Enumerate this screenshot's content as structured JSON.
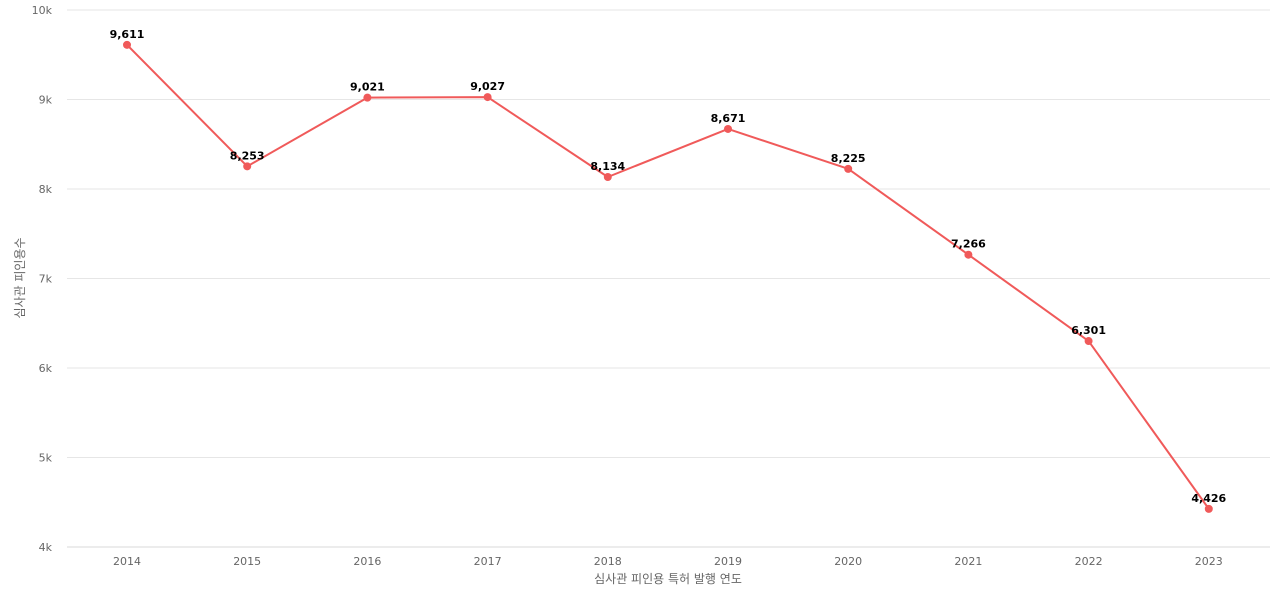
{
  "chart_data": {
    "type": "line",
    "title": "",
    "xlabel": "심사관 피인용 특허 발행 연도",
    "ylabel": "심사관 피인용수",
    "categories": [
      "2014",
      "2015",
      "2016",
      "2017",
      "2018",
      "2019",
      "2020",
      "2021",
      "2022",
      "2023"
    ],
    "series": [
      {
        "values": [
          9611,
          8253,
          9021,
          9027,
          8134,
          8671,
          8225,
          7266,
          6301,
          4426
        ],
        "color": "#f05a5a",
        "data_labels": [
          "9,611",
          "8,253",
          "9,021",
          "9,027",
          "8,134",
          "8,671",
          "8,225",
          "7,266",
          "6,301",
          "4,426"
        ]
      }
    ],
    "ylim": [
      4000,
      10000
    ],
    "yticks": [
      4000,
      5000,
      6000,
      7000,
      8000,
      9000,
      10000
    ],
    "ytick_labels": [
      "4k",
      "5k",
      "6k",
      "7k",
      "8k",
      "9k",
      "10k"
    ],
    "grid": true,
    "legend": "none"
  }
}
